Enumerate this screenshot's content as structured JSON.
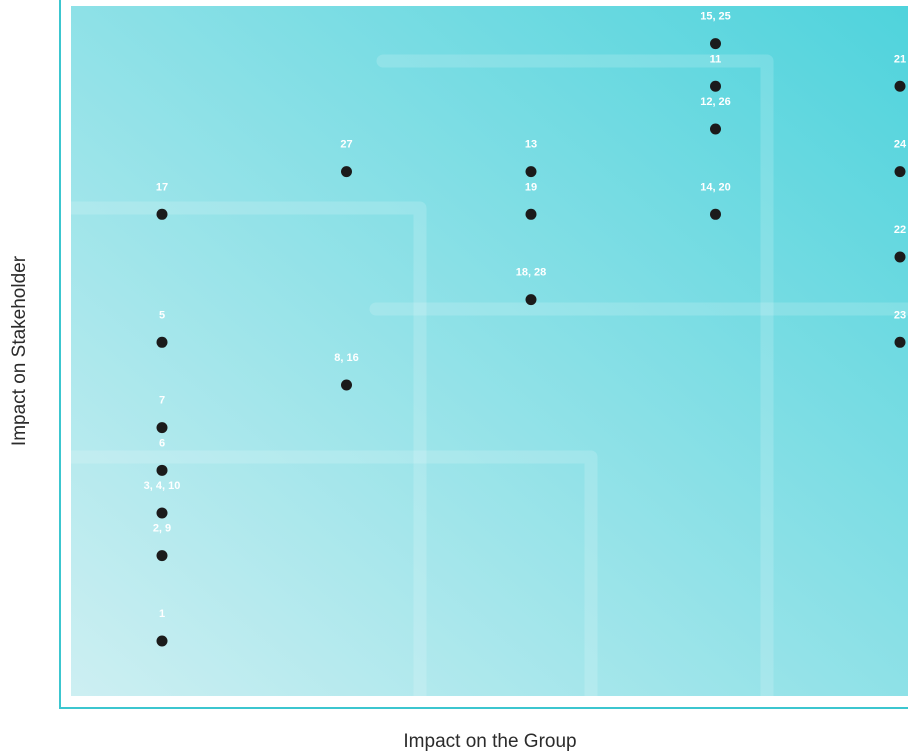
{
  "colors": {
    "gradient_start": "#cdeff2",
    "gradient_end": "#4fd3dc",
    "frame": "#3cc6cf",
    "dot": "#1b1b1b",
    "point_label": "#ffffff",
    "axis_label": "#2b2b2b"
  },
  "chart_data": {
    "type": "scatter",
    "title": "",
    "xlabel": "Impact on the Group",
    "ylabel": "Impact on Stakeholder",
    "grid": false,
    "xlim": [
      0,
      5
    ],
    "ylim": [
      0,
      15.5
    ],
    "points": [
      {
        "label": "15, 25",
        "x": 3.0,
        "y": 15.0
      },
      {
        "label": "11",
        "x": 3.0,
        "y": 14.0
      },
      {
        "label": "21",
        "x": 4.0,
        "y": 14.0
      },
      {
        "label": "12, 26",
        "x": 3.0,
        "y": 13.0
      },
      {
        "label": "27",
        "x": 1.0,
        "y": 12.0
      },
      {
        "label": "13",
        "x": 2.0,
        "y": 12.0
      },
      {
        "label": "24",
        "x": 4.0,
        "y": 12.0
      },
      {
        "label": "17",
        "x": 0.0,
        "y": 11.0
      },
      {
        "label": "19",
        "x": 2.0,
        "y": 11.0
      },
      {
        "label": "14, 20",
        "x": 3.0,
        "y": 11.0
      },
      {
        "label": "22",
        "x": 4.0,
        "y": 10.0
      },
      {
        "label": "18, 28",
        "x": 2.0,
        "y": 9.0
      },
      {
        "label": "5",
        "x": 0.0,
        "y": 8.0
      },
      {
        "label": "23",
        "x": 4.0,
        "y": 8.0
      },
      {
        "label": "8, 16",
        "x": 1.0,
        "y": 7.0
      },
      {
        "label": "7",
        "x": 0.0,
        "y": 6.0
      },
      {
        "label": "6",
        "x": 0.0,
        "y": 5.0
      },
      {
        "label": "3, 4, 10",
        "x": 0.0,
        "y": 4.0
      },
      {
        "label": "2, 9",
        "x": 0.0,
        "y": 3.0
      },
      {
        "label": "1",
        "x": 0.0,
        "y": 1.0
      }
    ]
  }
}
